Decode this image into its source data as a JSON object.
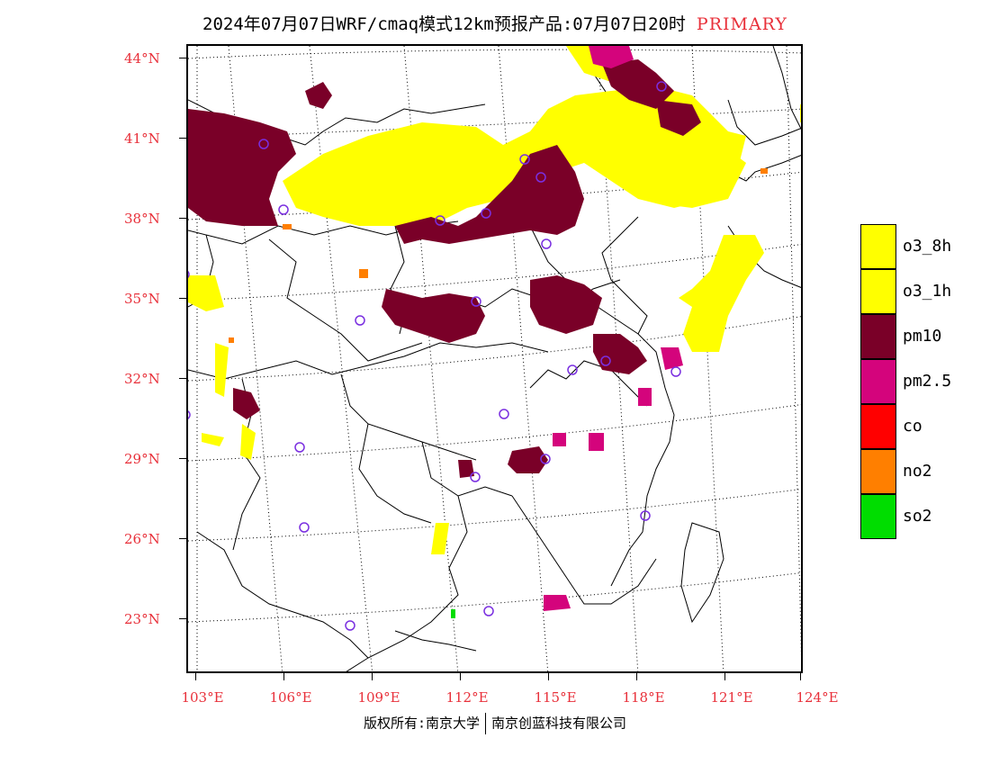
{
  "title": {
    "main": "2024年07月07日WRF/cmaq模式12km预报产品:07月07日20时",
    "primary": "PRIMARY"
  },
  "axes": {
    "latitudes": [
      "44°N",
      "41°N",
      "38°N",
      "35°N",
      "32°N",
      "29°N",
      "26°N",
      "23°N"
    ],
    "longitudes": [
      "103°E",
      "106°E",
      "109°E",
      "112°E",
      "115°E",
      "118°E",
      "121°E",
      "124°E"
    ]
  },
  "legend": [
    {
      "label": "o3_8h",
      "color": "#ffff00"
    },
    {
      "label": "o3_1h",
      "color": "#ffff00"
    },
    {
      "label": "pm10",
      "color": "#7a0028"
    },
    {
      "label": "pm2.5",
      "color": "#d4047c"
    },
    {
      "label": "co",
      "color": "#ff0000"
    },
    {
      "label": "no2",
      "color": "#ff7f00"
    },
    {
      "label": "so2",
      "color": "#00dd00"
    }
  ],
  "copyright": {
    "left": "版权所有:南京大学",
    "right": "南京创蓝科技有限公司"
  },
  "colors": {
    "axis_label": "#e8303a",
    "station_marker": "#7a2fe0"
  }
}
